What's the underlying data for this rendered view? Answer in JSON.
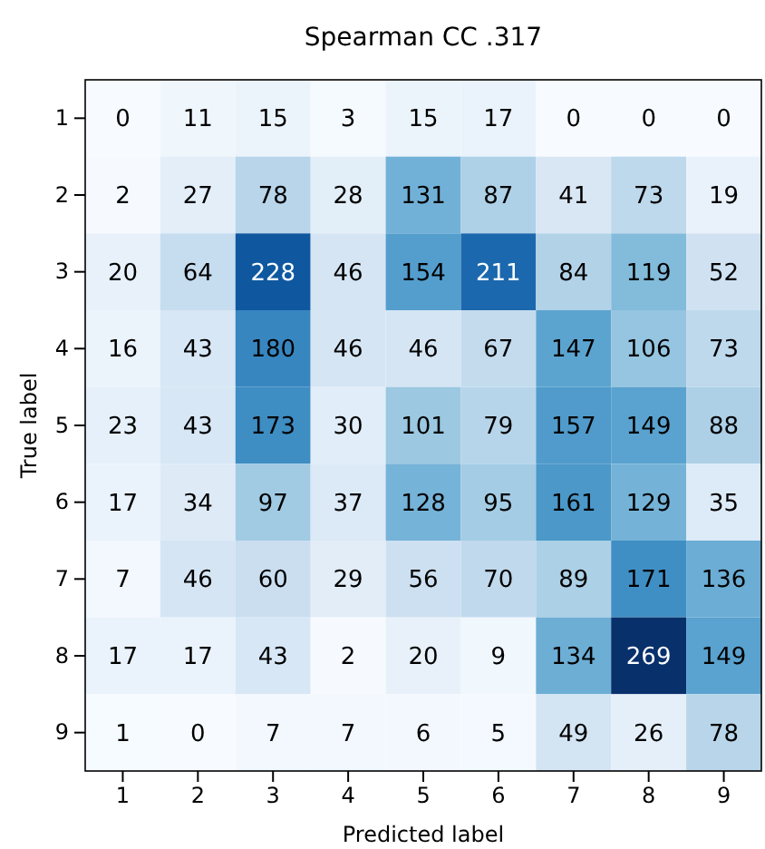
{
  "chart_data": {
    "type": "heatmap",
    "title": "Spearman CC .317",
    "xlabel": "Predicted label",
    "ylabel": "True label",
    "categories": [
      "1",
      "2",
      "3",
      "4",
      "5",
      "6",
      "7",
      "8",
      "9"
    ],
    "y_categories": [
      "1",
      "2",
      "3",
      "4",
      "5",
      "6",
      "7",
      "8",
      "9"
    ],
    "cells": [
      [
        0,
        11,
        15,
        3,
        15,
        17,
        0,
        0,
        0
      ],
      [
        2,
        27,
        78,
        28,
        131,
        87,
        41,
        73,
        19
      ],
      [
        20,
        64,
        228,
        46,
        154,
        211,
        84,
        119,
        52
      ],
      [
        16,
        43,
        180,
        46,
        46,
        67,
        147,
        106,
        73
      ],
      [
        23,
        43,
        173,
        30,
        101,
        79,
        157,
        149,
        88
      ],
      [
        17,
        34,
        97,
        37,
        128,
        95,
        161,
        129,
        35
      ],
      [
        7,
        46,
        60,
        29,
        56,
        70,
        89,
        171,
        136
      ],
      [
        17,
        17,
        43,
        2,
        20,
        9,
        134,
        269,
        149
      ],
      [
        1,
        0,
        7,
        7,
        6,
        5,
        49,
        26,
        78
      ]
    ],
    "data_labels": true
  }
}
